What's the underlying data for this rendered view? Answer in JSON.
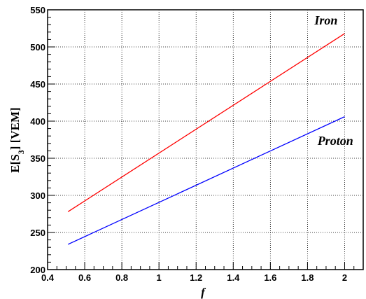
{
  "chart_data": {
    "type": "line",
    "xlabel": "f",
    "ylabel_main": "E[S",
    "ylabel_sub": "3",
    "ylabel_rest": "] [VEM]",
    "xlim": [
      0.4,
      2.1
    ],
    "ylim": [
      200,
      550
    ],
    "xticks": [
      0.4,
      0.6,
      0.8,
      1,
      1.2,
      1.4,
      1.6,
      1.8,
      2
    ],
    "xtick_labels": [
      "0.4",
      "0.6",
      "0.8",
      "1",
      "1.2",
      "1.4",
      "1.6",
      "1.8",
      "2"
    ],
    "yticks": [
      200,
      250,
      300,
      350,
      400,
      450,
      500,
      550
    ],
    "ytick_labels": [
      "200",
      "250",
      "300",
      "350",
      "400",
      "450",
      "500",
      "550"
    ],
    "grid": true,
    "series": [
      {
        "name": "Iron",
        "color": "#ff0000",
        "x": [
          0.51,
          2.0
        ],
        "y": [
          278,
          518
        ],
        "label_at": [
          1.9,
          530
        ]
      },
      {
        "name": "Proton",
        "color": "#0000ff",
        "x": [
          0.51,
          2.0
        ],
        "y": [
          234,
          406
        ],
        "label_at": [
          1.95,
          368
        ]
      }
    ]
  }
}
